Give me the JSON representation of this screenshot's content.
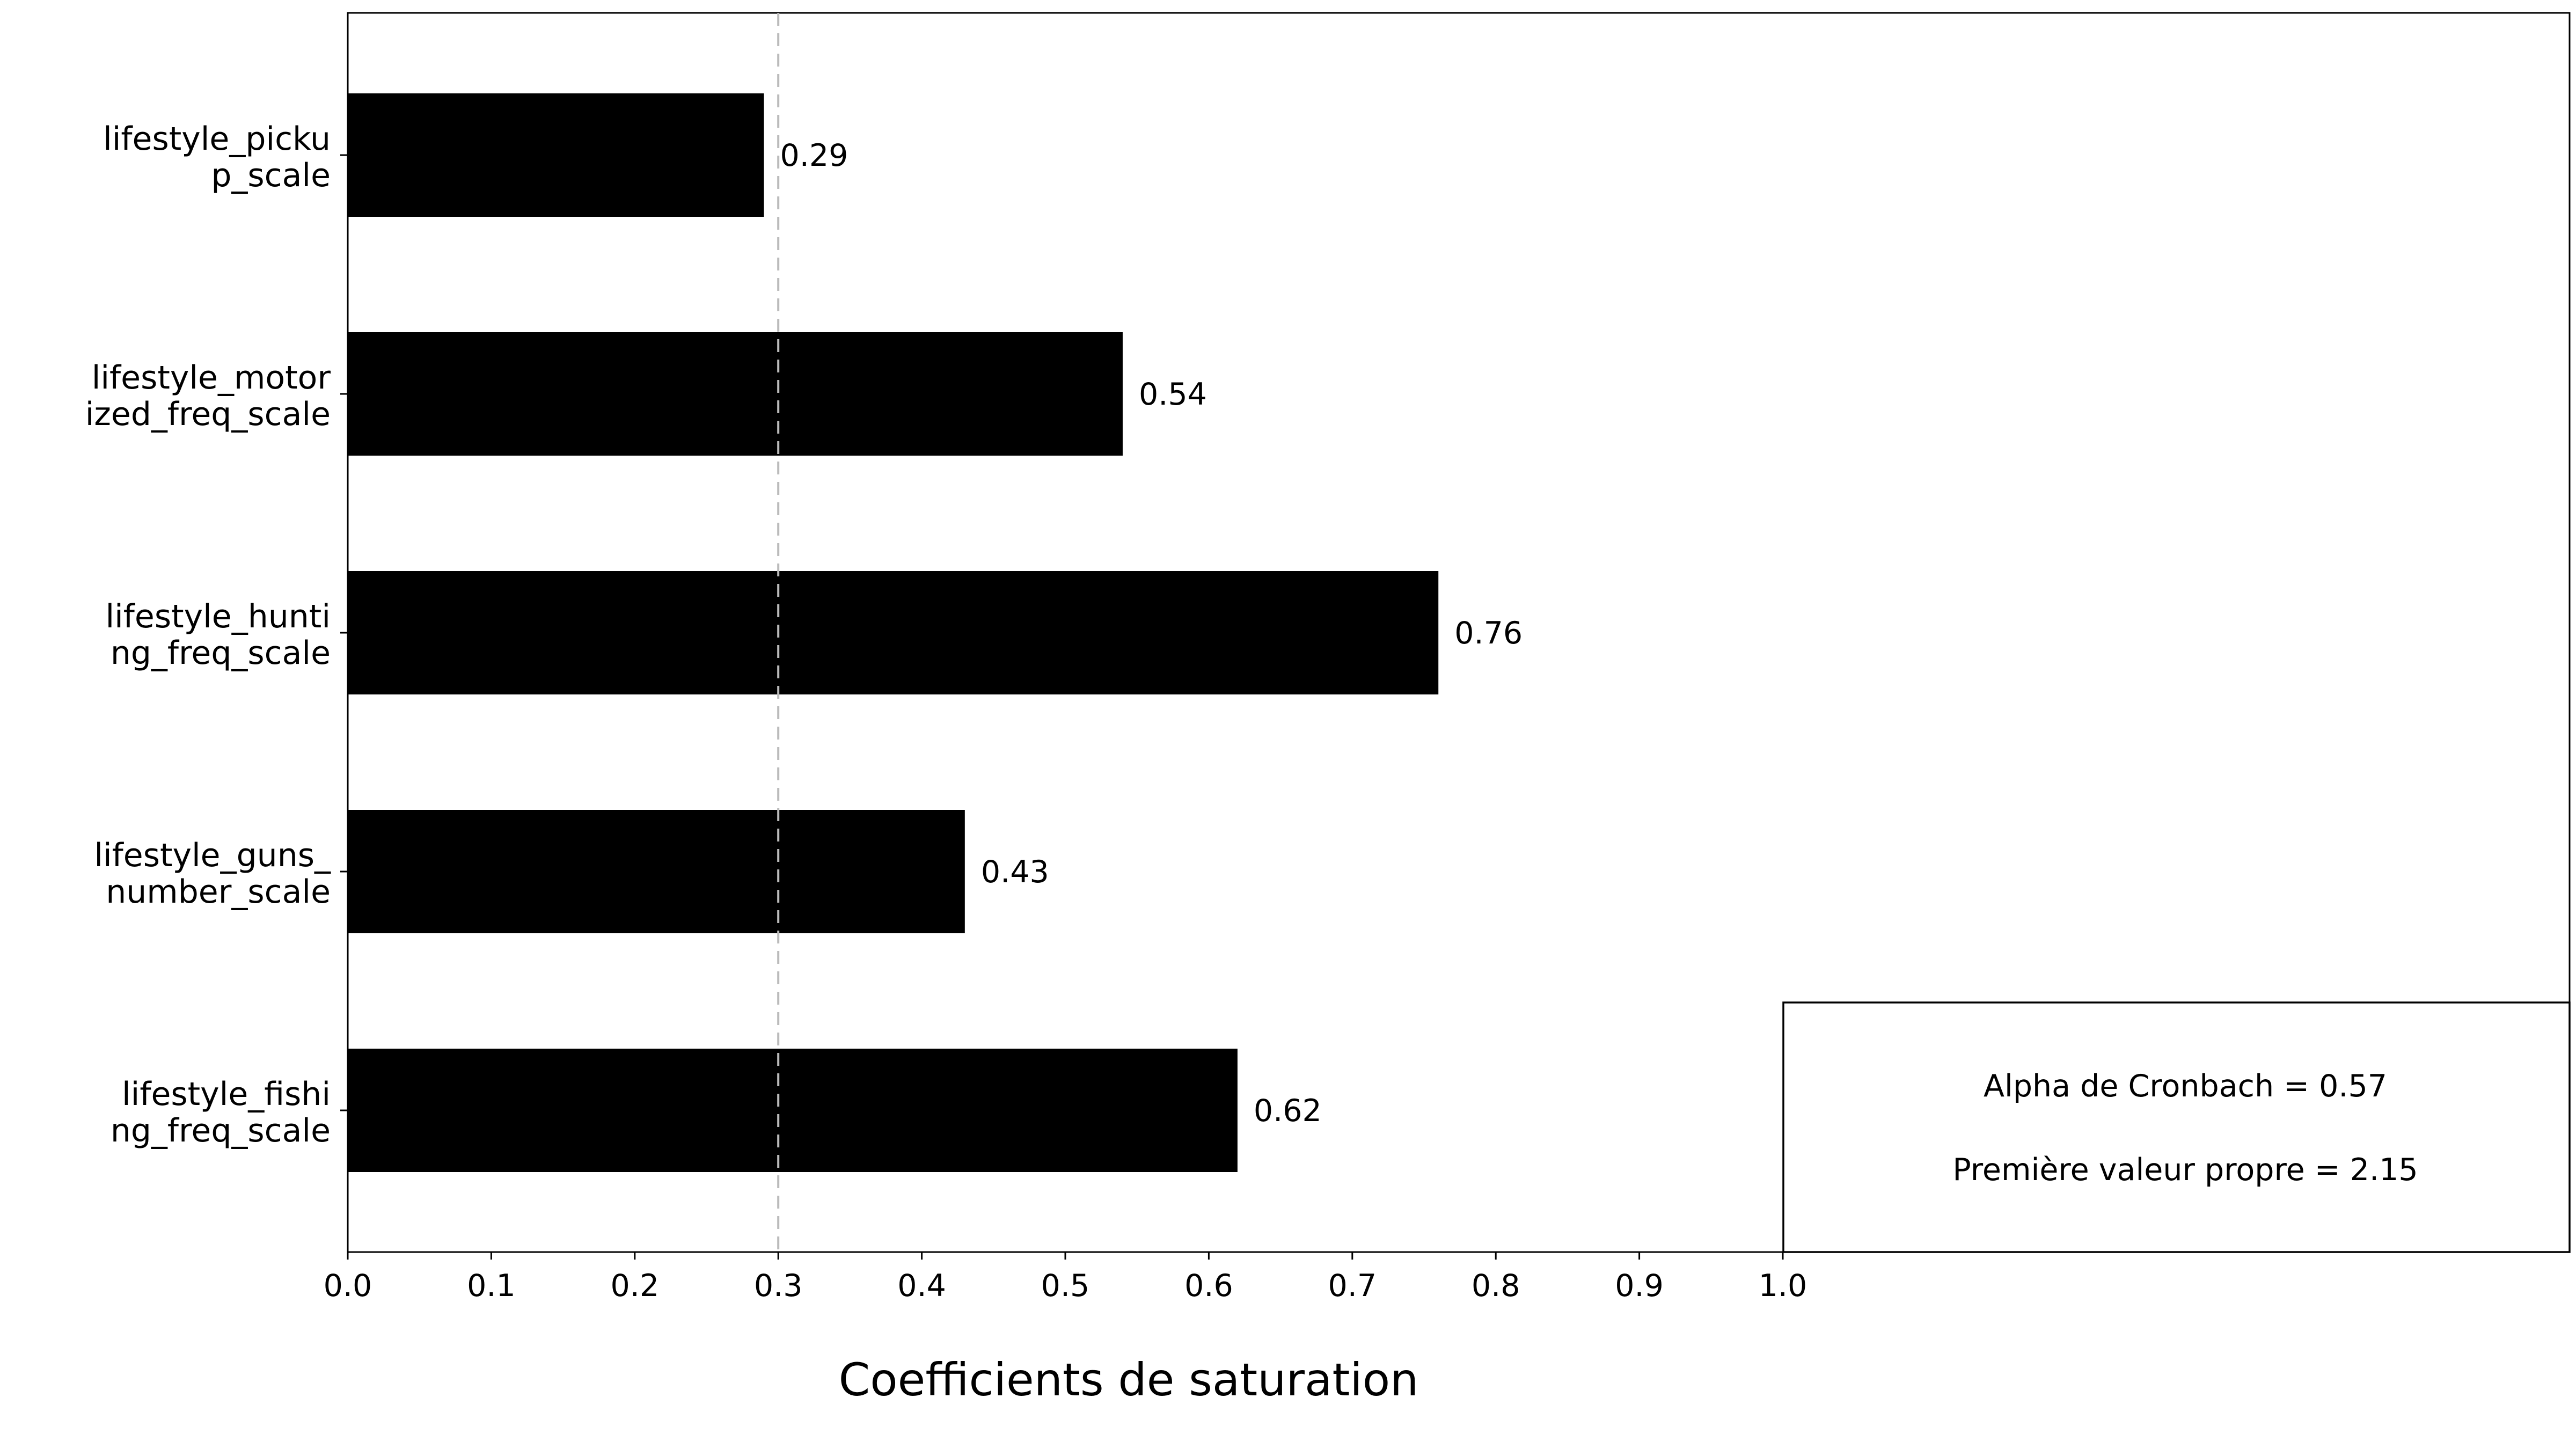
{
  "chart_data": {
    "type": "bar",
    "orientation": "horizontal",
    "categories": [
      [
        "lifestyle_picku",
        "p_scale"
      ],
      [
        "lifestyle_motor",
        "ized_freq_scale"
      ],
      [
        "lifestyle_hunti",
        "ng_freq_scale"
      ],
      [
        "lifestyle_guns_",
        "number_scale"
      ],
      [
        "lifestyle_fishi",
        "ng_freq_scale"
      ]
    ],
    "values": [
      0.29,
      0.54,
      0.76,
      0.43,
      0.62
    ],
    "data_labels": [
      "0.29",
      "0.54",
      "0.76",
      "0.43",
      "0.62"
    ],
    "xlabel": "Coefficients de saturation",
    "ylabel": "",
    "xlim": [
      0,
      1.55
    ],
    "xticks": [
      0.0,
      0.1,
      0.2,
      0.3,
      0.4,
      0.5,
      0.6,
      0.7,
      0.8,
      0.9,
      1.0
    ],
    "xtick_labels": [
      "0.0",
      "0.1",
      "0.2",
      "0.3",
      "0.4",
      "0.5",
      "0.6",
      "0.7",
      "0.8",
      "0.9",
      "1.0"
    ],
    "reference_line": {
      "x": 0.3,
      "style": "dashed",
      "color": "#bbbbbb"
    },
    "bar_color": "#000000",
    "grid": false,
    "annotation_box": {
      "position": "bottom-right",
      "lines": [
        "Alpha de Cronbach = 0.57",
        "Première valeur propre = 2.15"
      ]
    }
  }
}
